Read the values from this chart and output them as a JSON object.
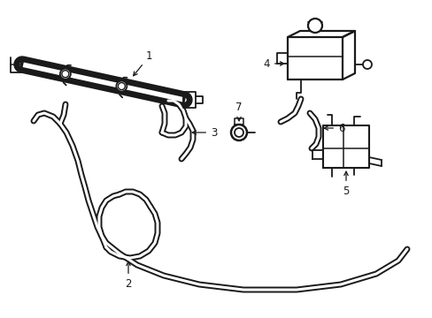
{
  "background_color": "#ffffff",
  "line_color": "#1a1a1a",
  "lw": 1.3,
  "tube_outer": 5.0,
  "tube_inner": 3.0,
  "fig_width": 4.89,
  "fig_height": 3.6,
  "dpi": 100,
  "label_fs": 8.5
}
